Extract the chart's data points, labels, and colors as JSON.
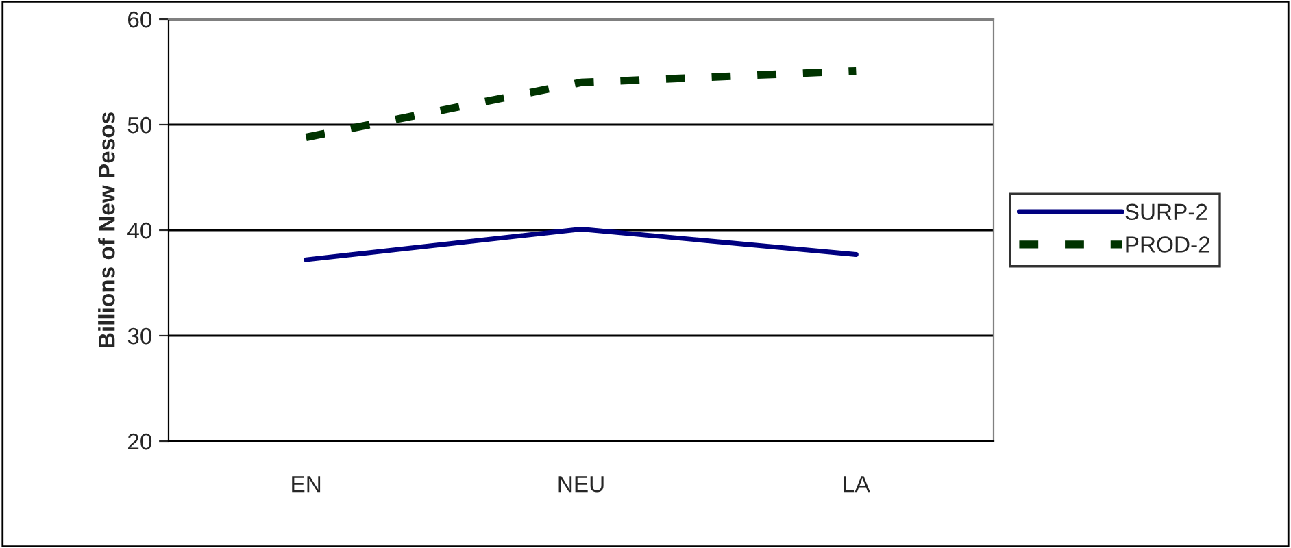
{
  "chart_data": {
    "type": "line",
    "ylabel": "Billions of New Pesos",
    "categories": [
      "EN",
      "NEU",
      "LA"
    ],
    "series": [
      {
        "name": "SURP-2",
        "color": "#000080",
        "values": [
          37.2,
          40.1,
          37.7
        ],
        "line_style": "solid"
      },
      {
        "name": "PROD-2",
        "color": "#003300",
        "values": [
          48.8,
          54.0,
          55.1
        ],
        "line_style": "dashed"
      }
    ],
    "ylim": [
      20,
      60
    ],
    "yticks": [
      20,
      30,
      40,
      50,
      60
    ],
    "grid": "y",
    "legend": "right"
  }
}
